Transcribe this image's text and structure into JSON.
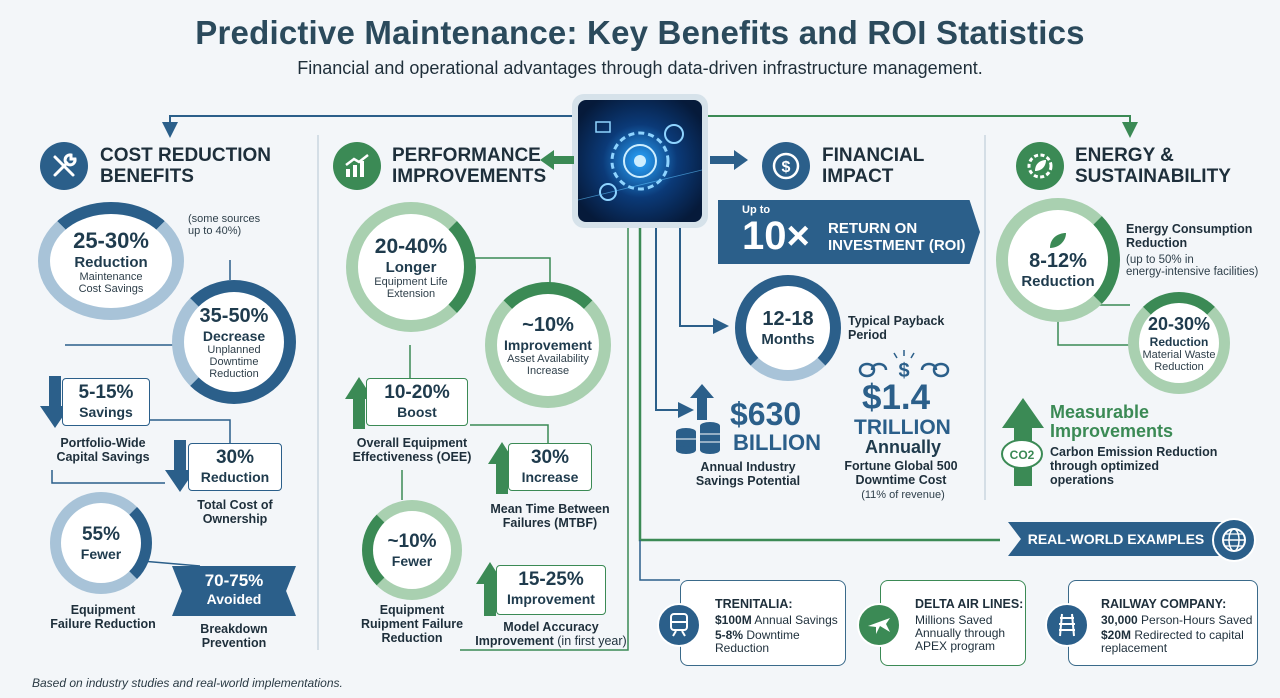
{
  "header": {
    "title": "Predictive Maintenance: Key Benefits and ROI Statistics",
    "subtitle": "Financial and operational advantages through data-driven infrastructure management."
  },
  "colors": {
    "navy": "#2b5f8a",
    "green": "#3b8a55",
    "lightblue": "#a8c3d8",
    "lightgreen": "#a9d0b0"
  },
  "cost": {
    "heading": [
      "COST REDUCTION",
      "BENEFITS"
    ],
    "note": [
      "(some sources",
      "up to 40%)"
    ],
    "c1": {
      "value": "25-30%",
      "label": "Reduction",
      "desc": [
        "Maintenance",
        "Cost Savings"
      ]
    },
    "c2": {
      "value": "35-50%",
      "label": "Decrease",
      "desc": [
        "Unplanned",
        "Downtime",
        "Reduction"
      ]
    },
    "a1": {
      "value": "5-15%",
      "label": "Savings",
      "desc": [
        "Portfolio-Wide",
        "Capital Savings"
      ]
    },
    "a2": {
      "value": "30%",
      "label": "Reduction",
      "desc": [
        "Total Cost of",
        "Ownership"
      ]
    },
    "c3": {
      "value": "55%",
      "label": "Fewer",
      "desc": [
        "Equipment",
        "Failure Reduction"
      ]
    },
    "b1": {
      "value": "70-75%",
      "label": "Avoided",
      "desc": [
        "Breakdown",
        "Prevention"
      ]
    }
  },
  "perf": {
    "heading": [
      "PERFORMANCE",
      "IMPROVEMENTS"
    ],
    "c1": {
      "value": "20-40%",
      "label": "Longer",
      "desc": [
        "Equipment Life",
        "Extension"
      ]
    },
    "c2": {
      "value": "~10%",
      "label": "Improvement",
      "desc": [
        "Asset Availability",
        "Increase"
      ]
    },
    "a1": {
      "value": "10-20%",
      "label": "Boost",
      "desc": [
        "Overall Equipment",
        "Effectiveness (OEE)"
      ]
    },
    "a2": {
      "value": "30%",
      "label": "Increase",
      "desc": [
        "Mean Time Between",
        "Failures (MTBF)"
      ]
    },
    "c3": {
      "value": "~10%",
      "label": "Fewer",
      "desc": [
        "Equipment",
        "Ruipment Failure",
        "Reduction"
      ]
    },
    "a3": {
      "value": "15-25%",
      "label": "Improvement",
      "desc1": "Model Accuracy",
      "desc2a": "Improvement",
      "desc2b": " (in first year)"
    }
  },
  "fin": {
    "heading": [
      "FINANCIAL",
      "IMPACT"
    ],
    "roi": {
      "upto": "Up to",
      "value": "10×",
      "label": [
        "RETURN ON",
        "INVESTMENT (ROI)"
      ]
    },
    "payback": {
      "value": "12-18",
      "label": "Months",
      "desc": [
        "Typical Payback",
        "Period"
      ]
    },
    "savings": {
      "value": "$630",
      "unit": "BILLION",
      "desc": [
        "Annual Industry",
        "Savings Potential"
      ]
    },
    "downtime": {
      "value": "$1.4",
      "unit": "TRILLION",
      "label": "Annually",
      "desc": [
        "Fortune Global 500",
        "Downtime Cost"
      ],
      "note": "(11% of revenue)"
    }
  },
  "energy": {
    "heading": [
      "ENERGY &",
      "SUSTAINABILITY"
    ],
    "c1": {
      "value": "8-12%",
      "label": "Reduction",
      "desc": [
        "Energy Consumption",
        "Reduction"
      ],
      "note": [
        "(up to 50% in",
        "energy-intensive facilities)"
      ]
    },
    "c2": {
      "value": "20-30%",
      "label": "Reduction",
      "desc": [
        "Material Waste",
        "Reduction"
      ]
    },
    "carbon": {
      "title": [
        "Measurable",
        "Improvements"
      ],
      "co2": "CO2",
      "desc": [
        "Carbon Emission Reduction",
        "through optimized",
        "operations"
      ]
    }
  },
  "examples": {
    "banner": "REAL-WORLD EXAMPLES",
    "items": [
      {
        "title": "TRENITALIA:",
        "l1a": "$100M",
        "l1b": " Annual Savings",
        "l2a": "5-8%",
        "l2b": " Downtime",
        "l3": "Reduction"
      },
      {
        "title": "DELTA AIR LINES:",
        "l1": "Millions Saved",
        "l2": "Annually through",
        "l3": "APEX program"
      },
      {
        "title": "RAILWAY COMPANY:",
        "l1a": "30,000",
        "l1b": " Person-Hours Saved",
        "l2a": "$20M",
        "l2b": " Redirected to capital",
        "l3": "replacement"
      }
    ]
  },
  "footer": "Based on industry studies and real-world implementations."
}
